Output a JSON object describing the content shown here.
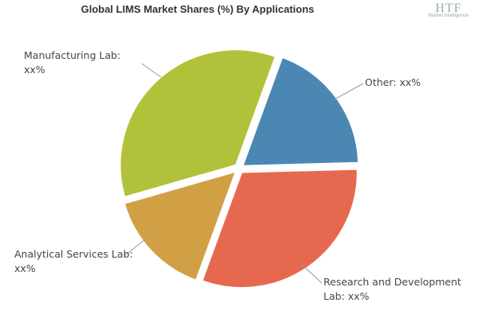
{
  "chart_data": {
    "type": "pie",
    "title": "Global LIMS Market Shares (%) By Applications",
    "categories": [
      "Other: xx%",
      "Research and Development Lab: xx%",
      "Analytical Services Lab: xx%",
      "Manufacturing Lab: xx%"
    ],
    "values": [
      19,
      31,
      15,
      35
    ],
    "colors": [
      "#4a87b3",
      "#e6694f",
      "#d2a044",
      "#b2c13a"
    ]
  },
  "logo": {
    "name": "HTF",
    "tagline": "Market Intelligence"
  }
}
